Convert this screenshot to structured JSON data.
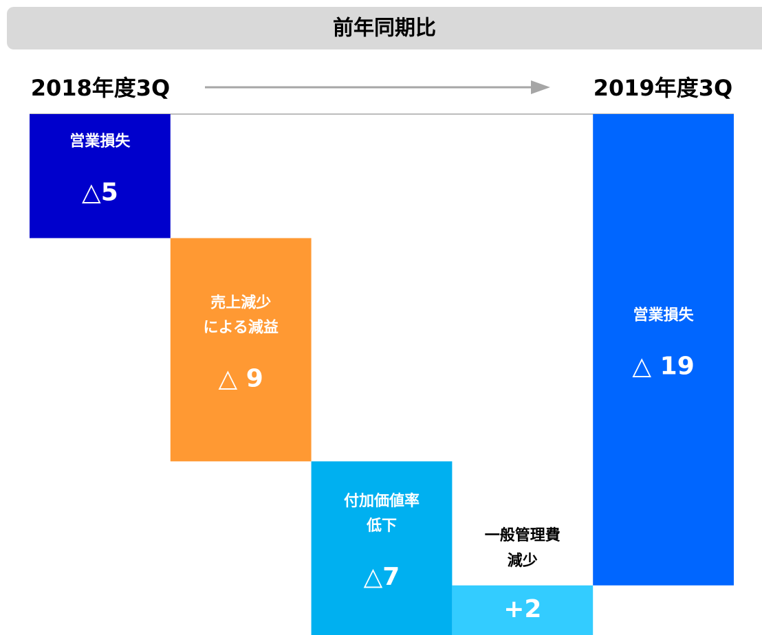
{
  "chart_data": {
    "type": "waterfall",
    "title": "前年同期比",
    "start_label": "2018年度3Q",
    "end_label": "2019年度3Q",
    "categories": [
      [
        "営業損失"
      ],
      [
        "売上減少",
        "による減益"
      ],
      [
        "付加価値率",
        "低下"
      ],
      [
        "一般管理費",
        "減少"
      ],
      [
        "営業損失"
      ]
    ],
    "values": [
      -5,
      -9,
      -7,
      2,
      -19
    ],
    "value_labels": [
      "△5",
      "△ 9",
      "△7",
      "+2",
      "△ 19"
    ],
    "colors": [
      "#0000cc",
      "#ff9933",
      "#00b0f0",
      "#33ccff",
      "#0066ff"
    ],
    "ylim": [
      -21,
      0
    ]
  }
}
